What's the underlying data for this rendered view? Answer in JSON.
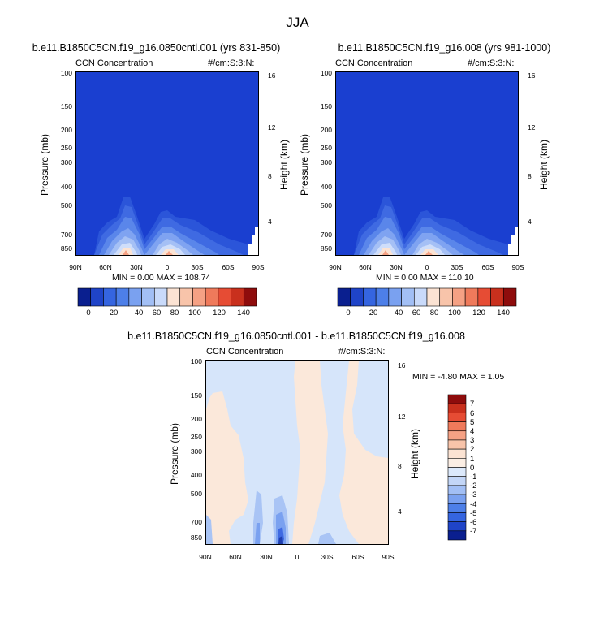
{
  "figure": {
    "title": "JJA"
  },
  "chart_data": [
    {
      "type": "heatmap",
      "title": "b.e11.B1850C5CN.f19_g16.0850cntl.001 (yrs 831-850)",
      "left_label": "CCN Concentration",
      "right_label": "#/cm:S:3:N:",
      "ylabel": "Pressure (mb)",
      "y2label": "Height (km)",
      "x_ticks": [
        "90N",
        "60N",
        "30N",
        "0",
        "30S",
        "60S",
        "90S"
      ],
      "y_ticks": [
        "100",
        "150",
        "200",
        "250",
        "300",
        "400",
        "500",
        "700",
        "850"
      ],
      "y2_ticks": [
        "16",
        "12",
        "8",
        "4"
      ],
      "min_max": "MIN =   0.00  MAX = 108.74",
      "colorbar_labels": [
        "0",
        "20",
        "40",
        "60",
        "80",
        "100",
        "120",
        "140"
      ],
      "colorbar_colors": [
        "#0a1f8f",
        "#1f44c8",
        "#3565e0",
        "#4d7fe8",
        "#7aa1f0",
        "#a2bff5",
        "#c9dafa",
        "#fbe3d3",
        "#f8c4aa",
        "#f5a184",
        "#ef7a5b",
        "#e64c34",
        "#c9301d",
        "#8e0c0c"
      ],
      "max_value": 108.74,
      "min_value": 0.0
    },
    {
      "type": "heatmap",
      "title": "b.e11.B1850C5CN.f19_g16.008 (yrs 981-1000)",
      "left_label": "CCN Concentration",
      "right_label": "#/cm:S:3:N:",
      "ylabel": "Pressure (mb)",
      "y2label": "Height (km)",
      "x_ticks": [
        "90N",
        "60N",
        "30N",
        "0",
        "30S",
        "60S",
        "90S"
      ],
      "y_ticks": [
        "100",
        "150",
        "200",
        "250",
        "300",
        "400",
        "500",
        "700",
        "850"
      ],
      "y2_ticks": [
        "16",
        "12",
        "8",
        "4"
      ],
      "min_max": "MIN =   0.00  MAX = 110.10",
      "colorbar_labels": [
        "0",
        "20",
        "40",
        "60",
        "80",
        "100",
        "120",
        "140"
      ],
      "colorbar_colors": [
        "#0a1f8f",
        "#1f44c8",
        "#3565e0",
        "#4d7fe8",
        "#7aa1f0",
        "#a2bff5",
        "#c9dafa",
        "#fbe3d3",
        "#f8c4aa",
        "#f5a184",
        "#ef7a5b",
        "#e64c34",
        "#c9301d",
        "#8e0c0c"
      ],
      "max_value": 110.1,
      "min_value": 0.0
    },
    {
      "type": "heatmap",
      "title": "b.e11.B1850C5CN.f19_g16.0850cntl.001 - b.e11.B1850C5CN.f19_g16.008",
      "left_label": "CCN Concentration",
      "right_label": "#/cm:S:3:N:",
      "ylabel": "Pressure (mb)",
      "y2label": "Height (km)",
      "x_ticks": [
        "90N",
        "60N",
        "30N",
        "0",
        "30S",
        "60S",
        "90S"
      ],
      "y_ticks": [
        "100",
        "150",
        "200",
        "250",
        "300",
        "400",
        "500",
        "700",
        "850"
      ],
      "y2_ticks": [
        "16",
        "12",
        "8",
        "4"
      ],
      "min_max": "MIN =  -4.80  MAX =   1.05",
      "colorbar_labels": [
        "7",
        "6",
        "5",
        "4",
        "3",
        "2",
        "1",
        "0",
        "-1",
        "-2",
        "-3",
        "-4",
        "-5",
        "-6",
        "-7"
      ],
      "colorbar_colors": [
        "#8e0c0c",
        "#c9301d",
        "#e64c34",
        "#ef7a5b",
        "#f5a184",
        "#f8c4aa",
        "#fbe3d3",
        "#fbeee4",
        "#dce9fb",
        "#c3d6f7",
        "#a2bff5",
        "#7aa1f0",
        "#4d7fe8",
        "#3565e0",
        "#1f44c8",
        "#0a1f8f"
      ],
      "max_value": 1.05,
      "min_value": -4.8
    }
  ]
}
